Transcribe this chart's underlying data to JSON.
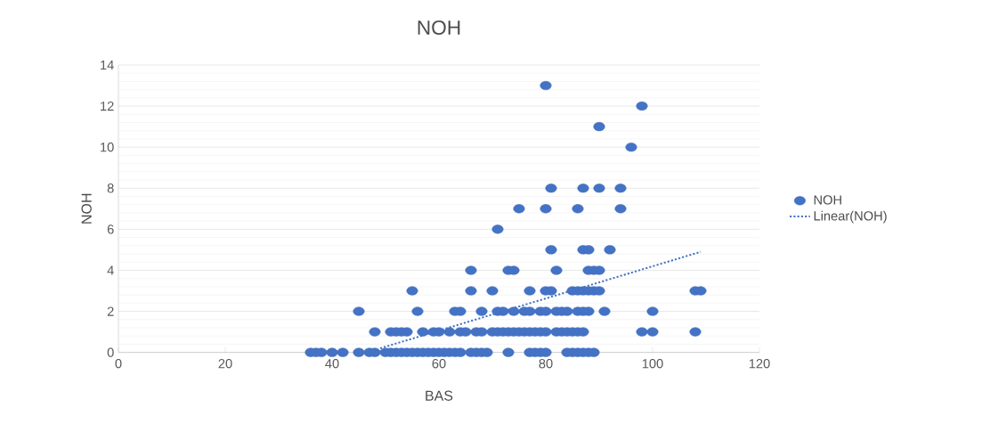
{
  "chart_data": {
    "type": "scatter",
    "title": "NOH",
    "xlabel": "BAS",
    "ylabel": "NOH",
    "xlim": [
      0,
      120
    ],
    "xticks": [
      0,
      20,
      40,
      60,
      80,
      100,
      120
    ],
    "ylim": [
      0,
      14
    ],
    "yticks": [
      0,
      2,
      4,
      6,
      8,
      10,
      12,
      14
    ],
    "grid": "y",
    "legend": "right",
    "marker": "circle",
    "series": [
      {
        "name": "NOH",
        "color": "#4472c4",
        "x": [
          36,
          37,
          38,
          40,
          42,
          45,
          47,
          48,
          50,
          51,
          52,
          53,
          54,
          55,
          56,
          57,
          58,
          59,
          60,
          61,
          62,
          63,
          64,
          66,
          67,
          68,
          69,
          73,
          77,
          78,
          79,
          80,
          84,
          85,
          86,
          87,
          88,
          89,
          48,
          51,
          52,
          53,
          54,
          57,
          59,
          60,
          62,
          64,
          65,
          67,
          68,
          70,
          71,
          72,
          73,
          74,
          75,
          76,
          77,
          78,
          79,
          80,
          82,
          83,
          84,
          85,
          86,
          87,
          98,
          100,
          108,
          45,
          56,
          63,
          64,
          68,
          71,
          72,
          74,
          76,
          77,
          79,
          80,
          82,
          83,
          84,
          86,
          87,
          88,
          91,
          100,
          55,
          66,
          70,
          77,
          80,
          81,
          85,
          86,
          87,
          88,
          89,
          90,
          108,
          109,
          66,
          73,
          74,
          82,
          88,
          89,
          90,
          81,
          87,
          88,
          92,
          71,
          75,
          80,
          86,
          94,
          81,
          87,
          90,
          94,
          96,
          90,
          98,
          80
        ],
        "values": [
          0,
          0,
          0,
          0,
          0,
          0,
          0,
          0,
          0,
          0,
          0,
          0,
          0,
          0,
          0,
          0,
          0,
          0,
          0,
          0,
          0,
          0,
          0,
          0,
          0,
          0,
          0,
          0,
          0,
          0,
          0,
          0,
          0,
          0,
          0,
          0,
          0,
          0,
          1,
          1,
          1,
          1,
          1,
          1,
          1,
          1,
          1,
          1,
          1,
          1,
          1,
          1,
          1,
          1,
          1,
          1,
          1,
          1,
          1,
          1,
          1,
          1,
          1,
          1,
          1,
          1,
          1,
          1,
          1,
          1,
          1,
          2,
          2,
          2,
          2,
          2,
          2,
          2,
          2,
          2,
          2,
          2,
          2,
          2,
          2,
          2,
          2,
          2,
          2,
          2,
          2,
          3,
          3,
          3,
          3,
          3,
          3,
          3,
          3,
          3,
          3,
          3,
          3,
          3,
          3,
          4,
          4,
          4,
          4,
          4,
          4,
          4,
          5,
          5,
          5,
          5,
          6,
          7,
          7,
          7,
          7,
          8,
          8,
          8,
          8,
          10,
          11,
          12,
          13
        ]
      },
      {
        "name": "Linear(NOH)",
        "type": "line",
        "color": "#4472c4",
        "line_style": "dotted",
        "marker": "none",
        "x": [
          49,
          109
        ],
        "values": [
          0.2,
          4.9
        ]
      }
    ]
  }
}
